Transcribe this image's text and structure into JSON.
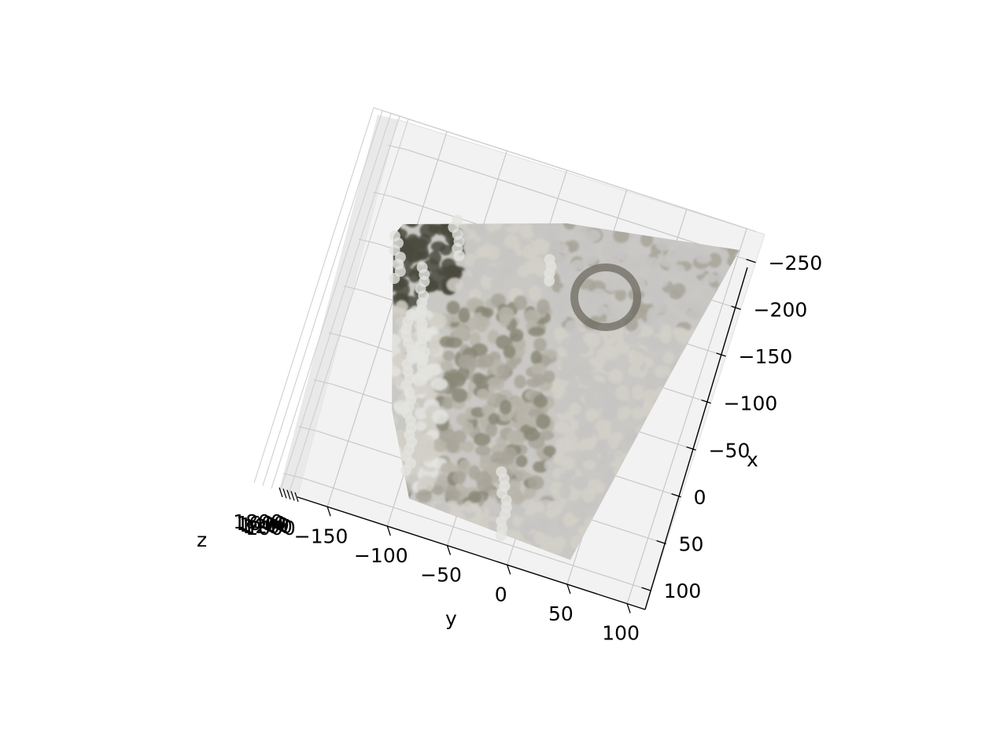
{
  "chart_data": {
    "type": "scatter",
    "projection": "3d",
    "title": "",
    "xlabel": "x",
    "ylabel": "y",
    "zlabel": "z",
    "x_ticks": [
      "−250",
      "−200",
      "−150",
      "−100",
      "−50",
      "0",
      "50",
      "100"
    ],
    "x_tick_values": [
      -250,
      -200,
      -150,
      -100,
      -50,
      0,
      50,
      100
    ],
    "y_ticks": [
      "−150",
      "−100",
      "−50",
      "0",
      "50",
      "100"
    ],
    "y_tick_values": [
      -150,
      -100,
      -50,
      0,
      50,
      100
    ],
    "z_tick_overlap_text": [
      "1800",
      "1600",
      "1400",
      "1200",
      "1000"
    ],
    "xlim": [
      -280,
      120
    ],
    "ylim": [
      -175,
      115
    ],
    "grid": true,
    "legend": "none",
    "point_colors": [
      "#4a4a3e",
      "#8a8878",
      "#b9b5aa",
      "#d2d0c8",
      "#e4e4e0",
      "#c7c6c3",
      "#a8a49a",
      "#6d6a60"
    ],
    "description_series": "dense colored point cloud (RGB-D scene reconstruction)"
  }
}
